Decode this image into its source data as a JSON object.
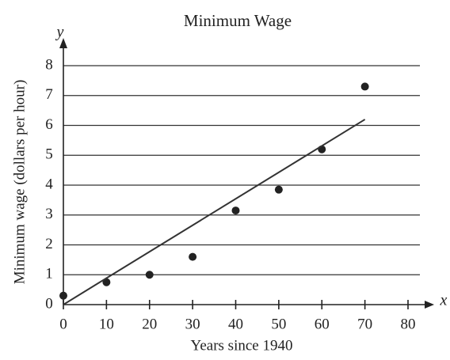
{
  "chart_data": {
    "type": "scatter",
    "title": "Minimum Wage",
    "x_label": "Years since 1940",
    "y_label": "Minimum wage (dollars per hour)",
    "x_symbol": "x",
    "y_symbol": "y",
    "xlim": [
      0,
      80
    ],
    "ylim": [
      0,
      8
    ],
    "xticks": [
      0,
      10,
      20,
      30,
      40,
      50,
      60,
      70,
      80
    ],
    "yticks": [
      0,
      1,
      2,
      3,
      4,
      5,
      6,
      7,
      8
    ],
    "grid": true,
    "series": [
      {
        "color": "#222222",
        "x": [
          0,
          10,
          20,
          30,
          40,
          50,
          60,
          70
        ],
        "values": [
          0.3,
          0.75,
          1.0,
          1.6,
          3.15,
          3.85,
          5.2,
          7.3
        ]
      }
    ],
    "line": {
      "color": "#333333",
      "x": [
        0,
        70
      ],
      "values": [
        0,
        6.2
      ]
    }
  }
}
